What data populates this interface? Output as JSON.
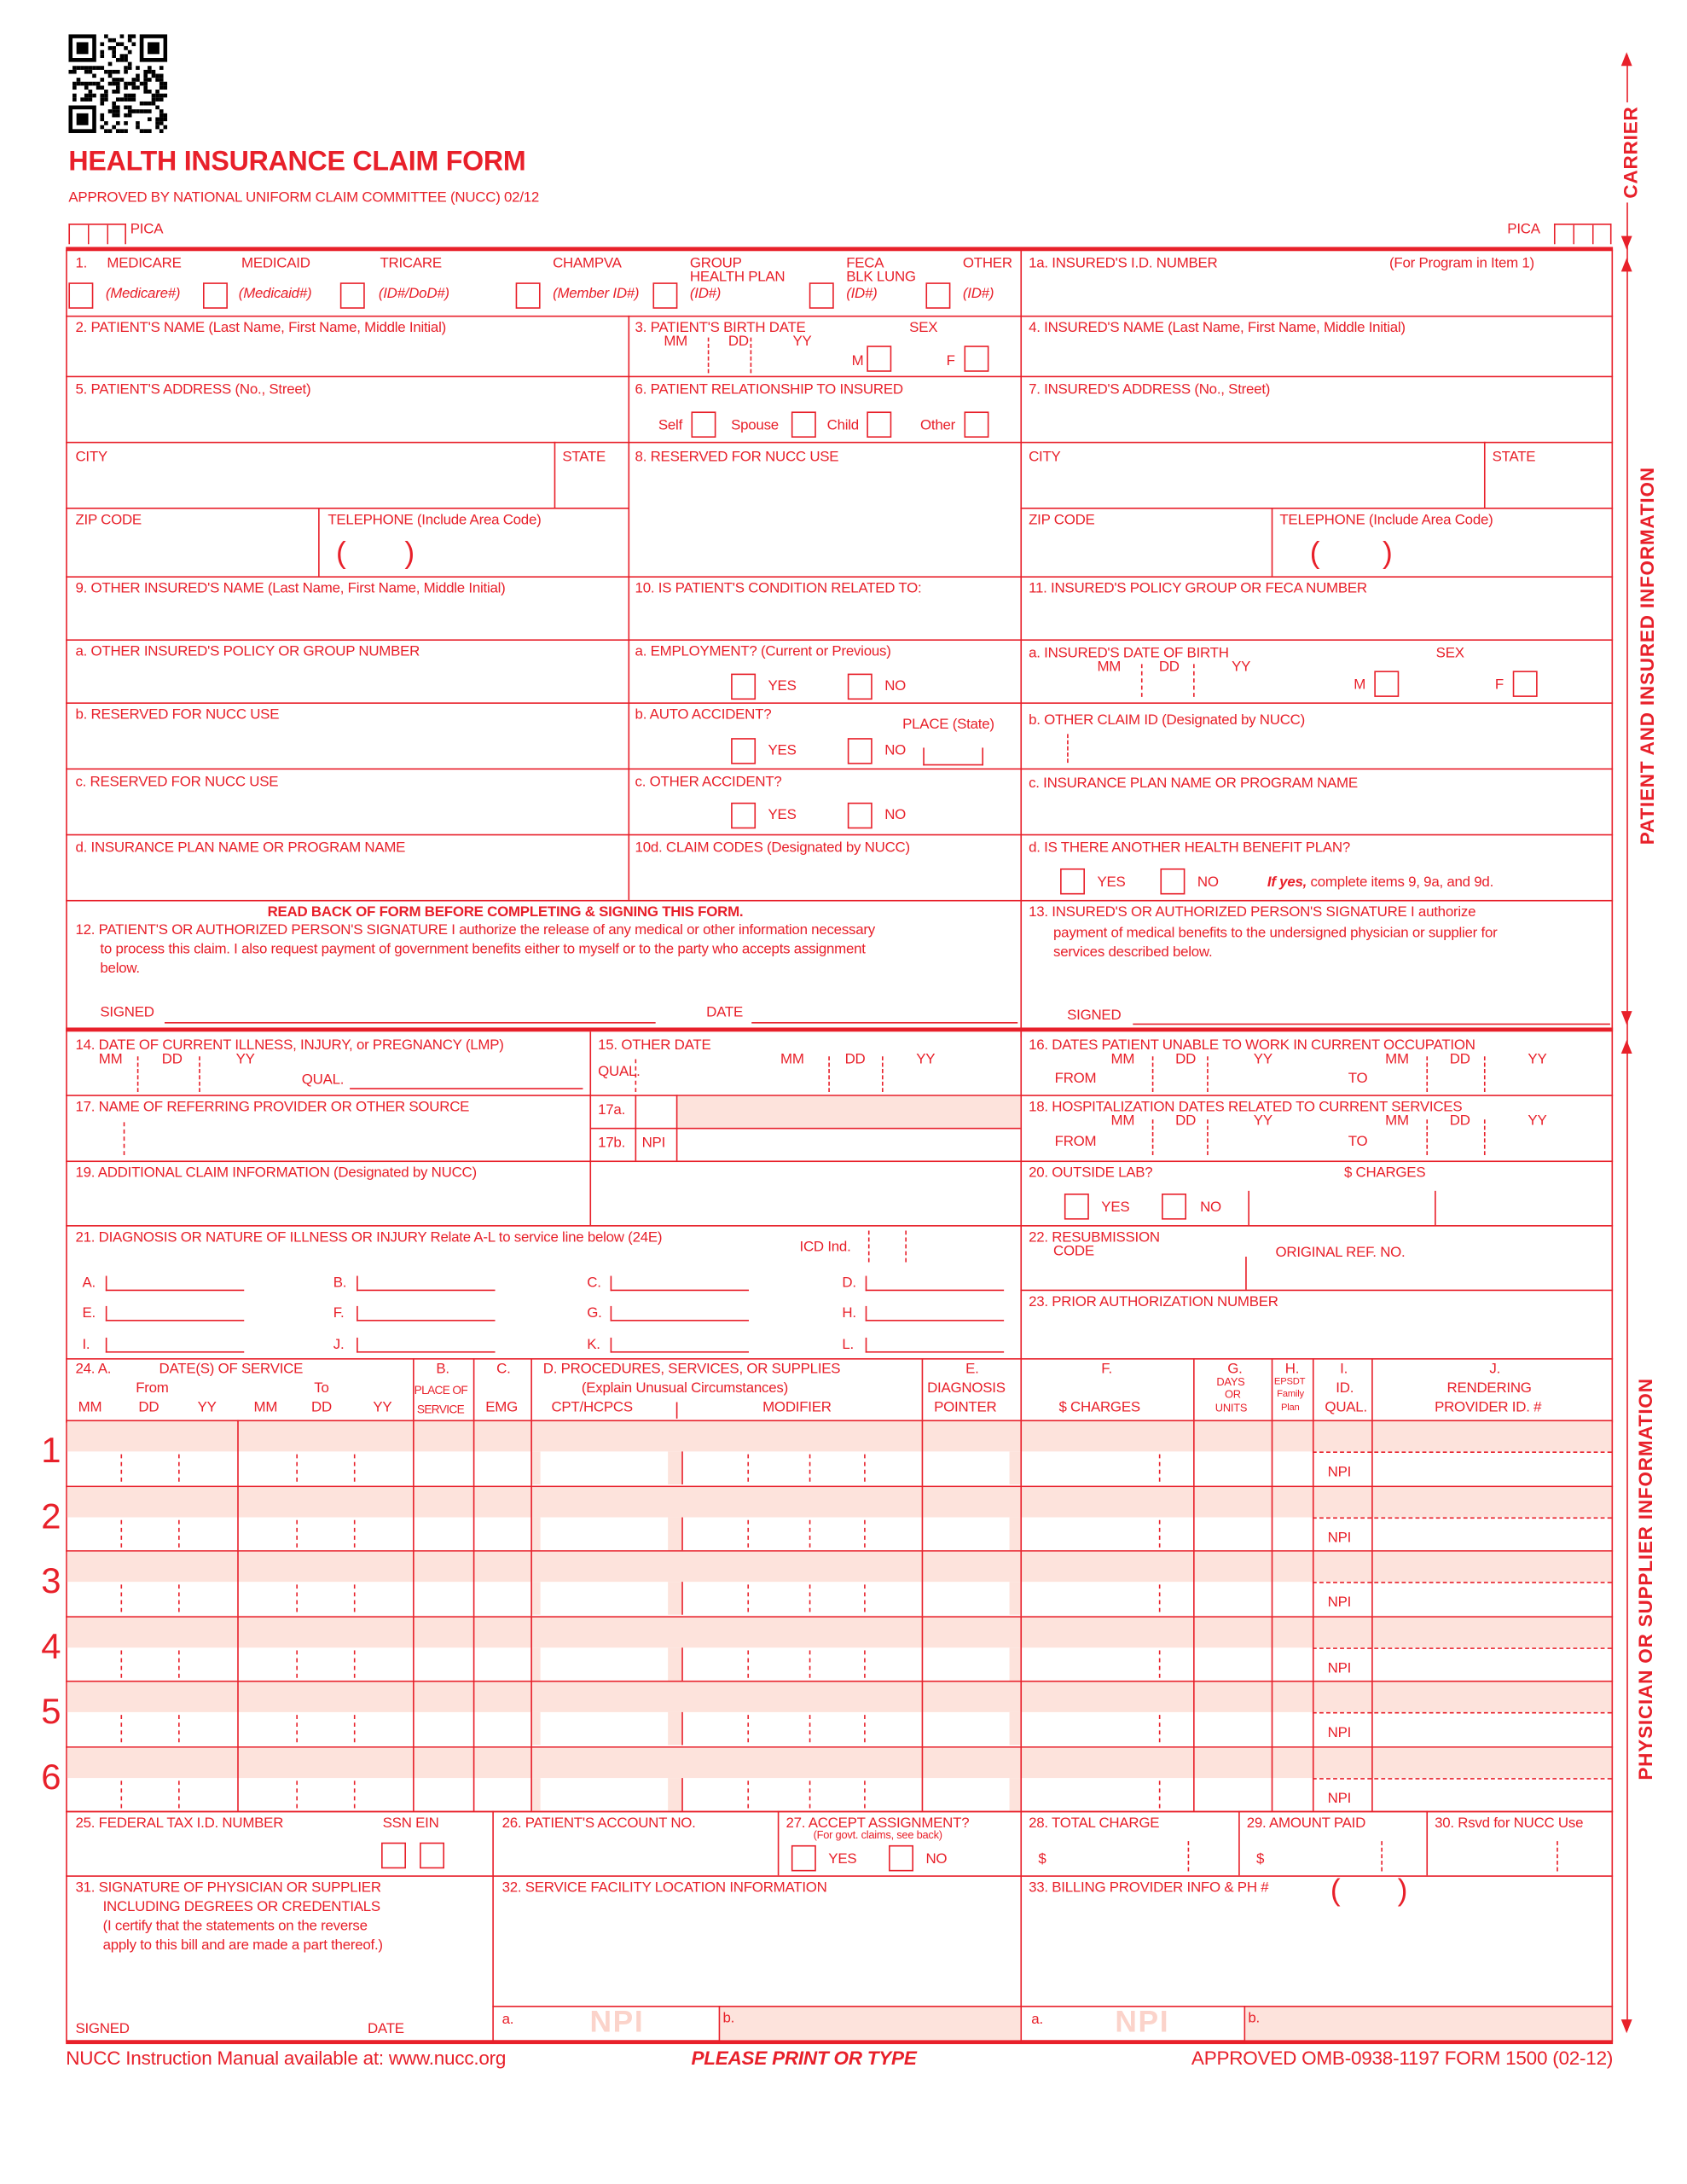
{
  "header": {
    "title": "HEALTH INSURANCE CLAIM FORM",
    "approved": "APPROVED BY NATIONAL UNIFORM CLAIM COMMITTEE (NUCC) 02/12",
    "pica": "PICA"
  },
  "side": {
    "carrier": "CARRIER",
    "patient": "PATIENT AND INSURED INFORMATION",
    "physician": "PHYSICIAN OR SUPPLIER INFORMATION"
  },
  "colors": {
    "form_red": "#e8202a",
    "shade": "#fde3dc"
  },
  "item1": {
    "num": "1.",
    "programs": [
      {
        "label": "MEDICARE",
        "sub": "(Medicare#)"
      },
      {
        "label": "MEDICAID",
        "sub": "(Medicaid#)"
      },
      {
        "label": "TRICARE",
        "sub": "(ID#/DoD#)"
      },
      {
        "label": "CHAMPVA",
        "sub": "(Member ID#)"
      },
      {
        "label": "GROUP",
        "label2": "HEALTH PLAN",
        "sub": "(ID#)"
      },
      {
        "label": "FECA",
        "label2": "BLK LUNG",
        "sub": "(ID#)"
      },
      {
        "label": "OTHER",
        "sub": "(ID#)"
      }
    ],
    "insured_id": "1a. INSURED'S I.D. NUMBER",
    "for_program": "(For Program in Item 1)"
  },
  "f2": "2. PATIENT'S NAME (Last Name, First Name, Middle Initial)",
  "f3": {
    "label": "3. PATIENT'S BIRTH DATE",
    "sex": "SEX",
    "mm": "MM",
    "dd": "DD",
    "yy": "YY",
    "m": "M",
    "f": "F"
  },
  "f4": "4. INSURED'S NAME (Last Name, First Name, Middle Initial)",
  "f5": "5. PATIENT'S ADDRESS (No., Street)",
  "f6": {
    "label": "6. PATIENT RELATIONSHIP TO INSURED",
    "self": "Self",
    "spouse": "Spouse",
    "child": "Child",
    "other": "Other"
  },
  "f7": "7. INSURED'S ADDRESS (No., Street)",
  "city": "CITY",
  "state": "STATE",
  "zip": "ZIP CODE",
  "telephone": "TELEPHONE (Include Area Code)",
  "lp": "(",
  "rp": ")",
  "f8": "8. RESERVED FOR NUCC USE",
  "f9": {
    "label": "9. OTHER INSURED'S NAME (Last Name, First Name, Middle Initial)",
    "a": "a. OTHER INSURED'S POLICY OR GROUP NUMBER",
    "b": "b. RESERVED FOR NUCC USE",
    "c": "c. RESERVED FOR NUCC USE",
    "d": "d. INSURANCE PLAN NAME OR PROGRAM NAME"
  },
  "f10": {
    "label": "10. IS PATIENT'S CONDITION RELATED TO:",
    "a": "a. EMPLOYMENT? (Current or Previous)",
    "b": "b. AUTO ACCIDENT?",
    "place": "PLACE (State)",
    "c": "c. OTHER ACCIDENT?",
    "d": "10d. CLAIM CODES (Designated by NUCC)",
    "yes": "YES",
    "no": "NO"
  },
  "f11": {
    "label": "11. INSURED'S POLICY GROUP OR FECA NUMBER",
    "a": "a. INSURED'S DATE OF BIRTH",
    "sex": "SEX",
    "b": "b. OTHER CLAIM ID (Designated by NUCC)",
    "c": "c. INSURANCE PLAN NAME OR PROGRAM NAME",
    "d": "d. IS THERE ANOTHER HEALTH BENEFIT PLAN?",
    "ifyes": "If yes,",
    "ifyes_rest": " complete items 9, 9a, and 9d."
  },
  "f12": {
    "readback": "READ BACK OF FORM BEFORE COMPLETING & SIGNING THIS FORM.",
    "l1": "12. PATIENT'S OR AUTHORIZED PERSON'S SIGNATURE  I authorize the release of any medical or other information necessary",
    "l2": "to process this claim. I also request payment of government benefits either to myself or to the party who accepts assignment",
    "l3": "below.",
    "signed": "SIGNED",
    "date": "DATE"
  },
  "f13": {
    "l1": "13. INSURED'S OR AUTHORIZED PERSON'S SIGNATURE I authorize",
    "l2": "payment of medical benefits to the undersigned physician or supplier for",
    "l3": "services described below.",
    "signed": "SIGNED"
  },
  "f14": {
    "label": "14. DATE OF CURRENT ILLNESS, INJURY, or PREGNANCY (LMP)",
    "qual": "QUAL."
  },
  "f15": {
    "label": "15. OTHER DATE",
    "qual": "QUAL."
  },
  "f16": {
    "label": "16. DATES PATIENT UNABLE TO WORK IN CURRENT OCCUPATION",
    "from": "FROM",
    "to": "TO"
  },
  "f17": {
    "label": "17. NAME OF REFERRING PROVIDER OR OTHER SOURCE",
    "a": "17a.",
    "b": "17b.",
    "npi": "NPI"
  },
  "f18": {
    "label": "18. HOSPITALIZATION DATES RELATED TO CURRENT SERVICES",
    "from": "FROM",
    "to": "TO"
  },
  "f19": "19. ADDITIONAL CLAIM INFORMATION (Designated by NUCC)",
  "f20": {
    "label": "20. OUTSIDE LAB?",
    "charges": "$ CHARGES"
  },
  "f21": {
    "label": "21. DIAGNOSIS OR NATURE OF ILLNESS OR INJURY  Relate A-L to service line below (24E)",
    "icd": "ICD Ind.",
    "letters": [
      "A.",
      "B.",
      "C.",
      "D.",
      "E.",
      "F.",
      "G.",
      "H.",
      "I.",
      "J.",
      "K.",
      "L."
    ]
  },
  "f22": {
    "label": "22. RESUBMISSION",
    "code": "CODE",
    "orig": "ORIGINAL REF. NO."
  },
  "f23": "23. PRIOR AUTHORIZATION NUMBER",
  "f24": {
    "a": "24. A.",
    "dates": "DATE(S) OF SERVICE",
    "from": "From",
    "to": "To",
    "mm": "MM",
    "dd": "DD",
    "yy": "YY",
    "b": "B.",
    "pos1": "PLACE OF",
    "pos2": "SERVICE",
    "c": "C.",
    "emg": "EMG",
    "d": "D. PROCEDURES, SERVICES, OR SUPPLIES",
    "explain": "(Explain Unusual Circumstances)",
    "cpt": "CPT/HCPCS",
    "modifier": "MODIFIER",
    "e": "E.",
    "diag": "DIAGNOSIS",
    "pointer": "POINTER",
    "f": "F.",
    "charges": "$ CHARGES",
    "g": "G.",
    "days": "DAYS",
    "or": "OR",
    "units": "UNITS",
    "h": "H.",
    "epsdt": "EPSDT",
    "family": "Family",
    "plan": "Plan",
    "i": "I.",
    "id": "ID.",
    "qual": "QUAL.",
    "j": "J.",
    "rendering": "RENDERING",
    "provider": "PROVIDER ID. #",
    "npi": "NPI",
    "lines": [
      "1",
      "2",
      "3",
      "4",
      "5",
      "6"
    ]
  },
  "f25": {
    "label": "25. FEDERAL TAX I.D. NUMBER",
    "ssn_ein": "SSN EIN"
  },
  "f26": "26. PATIENT'S ACCOUNT NO.",
  "f27": {
    "label": "27. ACCEPT ASSIGNMENT?",
    "note": "(For govt. claims, see back)"
  },
  "f28": {
    "label": "28. TOTAL CHARGE",
    "dollar": "$"
  },
  "f29": {
    "label": "29. AMOUNT PAID",
    "dollar": "$"
  },
  "f30": "30. Rsvd for NUCC Use",
  "f31": {
    "l1": "31. SIGNATURE OF PHYSICIAN OR SUPPLIER",
    "l2": "INCLUDING DEGREES OR CREDENTIALS",
    "l3": "(I certify that the statements on the reverse",
    "l4": "apply to this bill and are made a part thereof.)",
    "signed": "SIGNED",
    "date": "DATE"
  },
  "f32": {
    "label": "32. SERVICE FACILITY LOCATION INFORMATION",
    "a": "a.",
    "b": "b.",
    "npi": "NPI"
  },
  "f33": {
    "label": "33. BILLING PROVIDER INFO & PH #",
    "a": "a.",
    "b": "b.",
    "npi": "NPI"
  },
  "footer": {
    "left": "NUCC Instruction Manual available at: www.nucc.org",
    "center": "PLEASE PRINT OR TYPE",
    "right": "APPROVED OMB-0938-1197 FORM 1500 (02-12)"
  }
}
